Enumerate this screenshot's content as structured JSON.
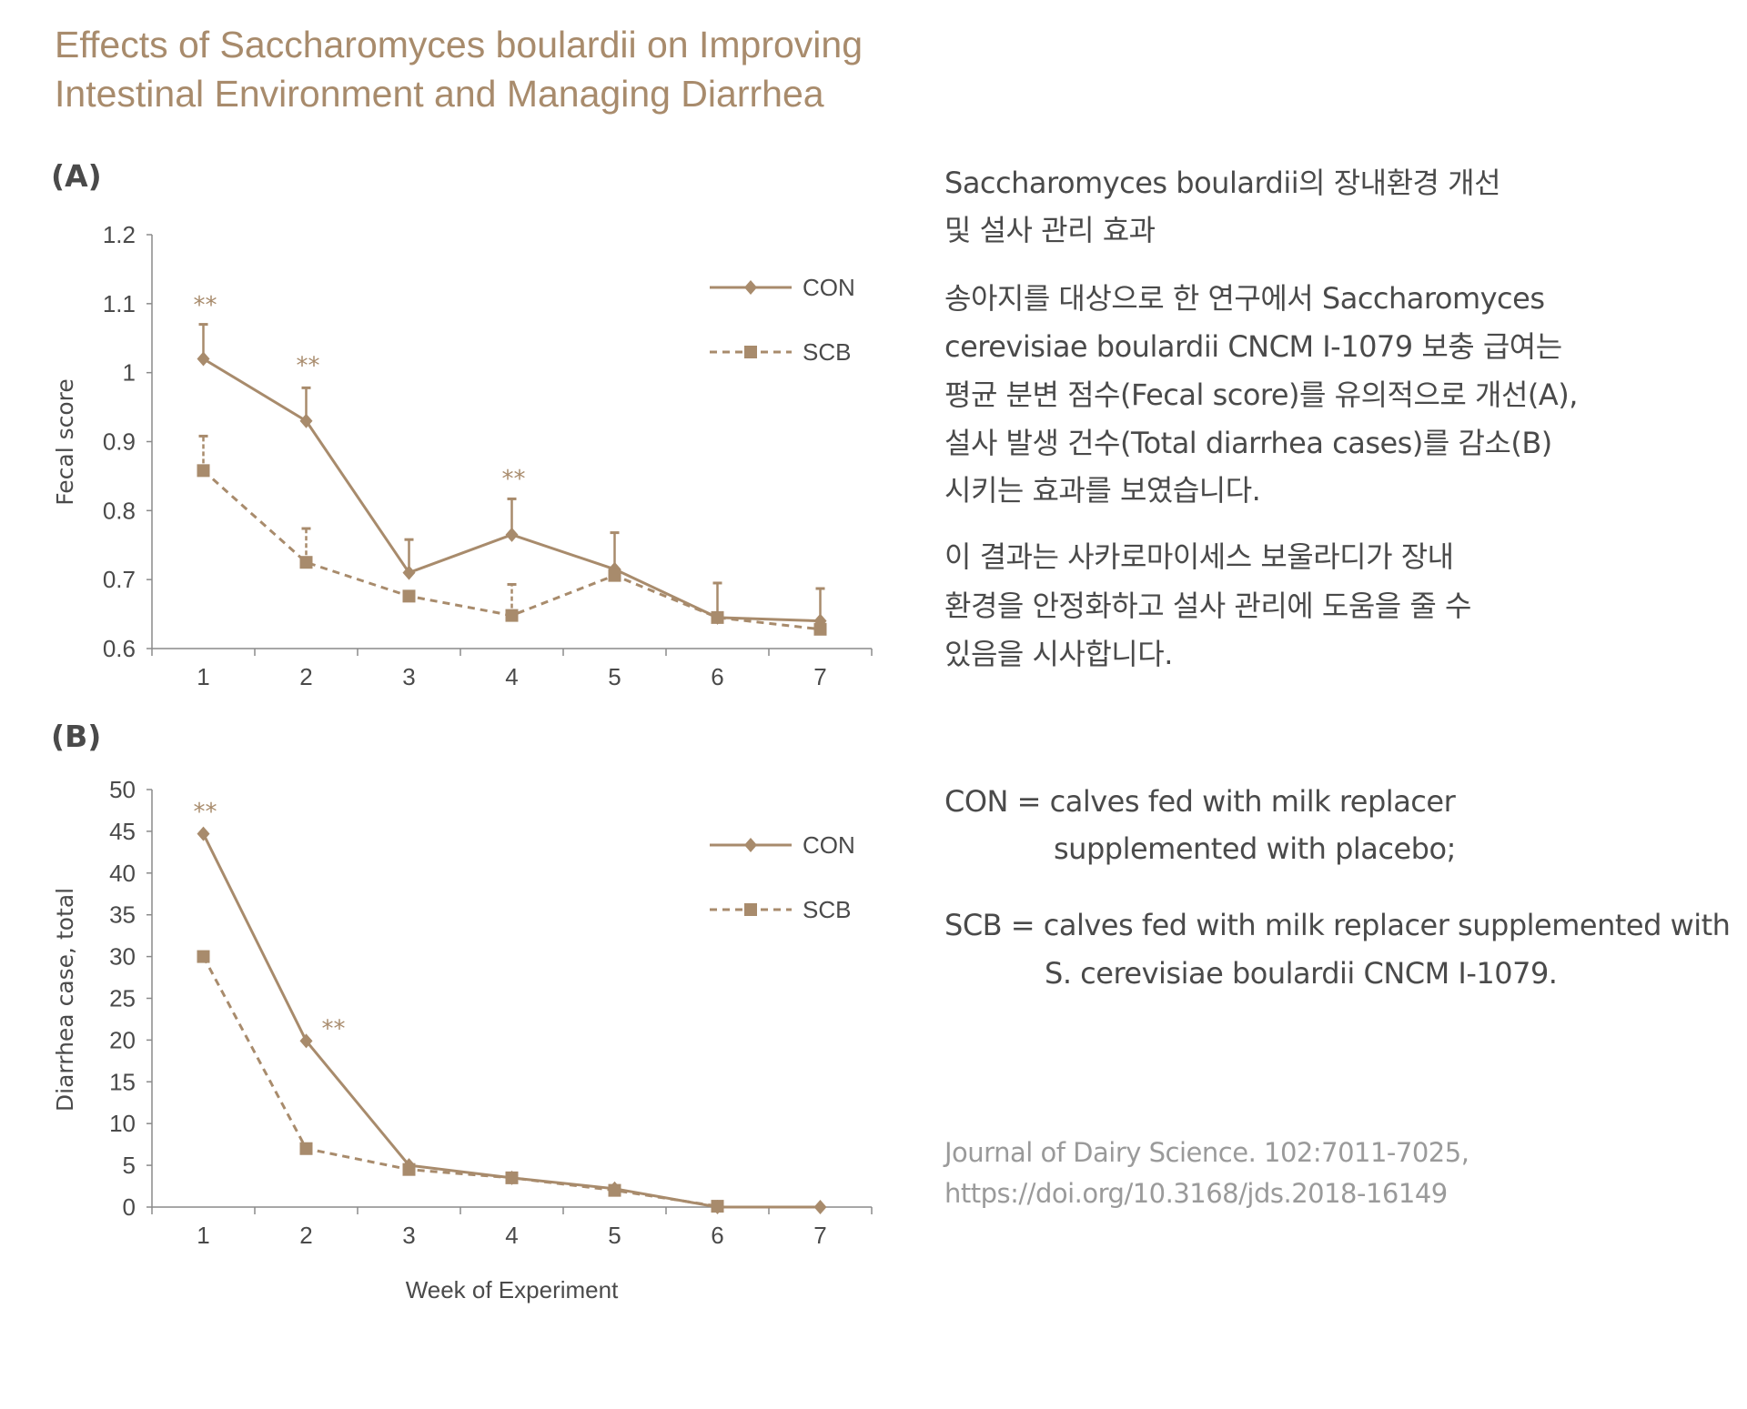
{
  "title_lines": [
    "Effects of Saccharomyces boulardii on Improving",
    "Intestinal Environment and Managing Diarrhea"
  ],
  "colors": {
    "accent": "#a88b6c",
    "text": "#4a4a4a",
    "citation": "#9a9a9a"
  },
  "chart_data": [
    {
      "panel_label": "(A)",
      "type": "line",
      "ylabel": "Fecal score",
      "xlabel": "",
      "categories": [
        "1",
        "2",
        "3",
        "4",
        "5",
        "6",
        "7"
      ],
      "ylim": [
        0.6,
        1.2
      ],
      "yticks": [
        "0.6",
        "0.7",
        "0.8",
        "0.9",
        "1",
        "1.1",
        "1.2"
      ],
      "grid": false,
      "legend_position": "top-right",
      "series": [
        {
          "name": "CON",
          "marker": "diamond",
          "line": "solid",
          "values": [
            1.02,
            0.93,
            0.71,
            0.765,
            0.715,
            0.645,
            0.64
          ],
          "error_upper": [
            1.07,
            0.978,
            0.758,
            0.817,
            0.768,
            0.695,
            0.687
          ]
        },
        {
          "name": "SCB",
          "marker": "square",
          "line": "dashed",
          "values": [
            0.858,
            0.725,
            0.676,
            0.648,
            0.706,
            0.645,
            0.628
          ],
          "error_upper": [
            0.908,
            0.774,
            null,
            0.693,
            null,
            null,
            null
          ]
        }
      ],
      "annotations": [
        {
          "text": "**",
          "week": 1,
          "value": 1.1
        },
        {
          "text": "**",
          "week": 2,
          "value": 1.012
        },
        {
          "text": "**",
          "week": 4,
          "value": 0.848
        }
      ]
    },
    {
      "panel_label": "(B)",
      "type": "line",
      "ylabel": "Diarrhea case, total",
      "xlabel": "Week of Experiment",
      "categories": [
        "1",
        "2",
        "3",
        "4",
        "5",
        "6",
        "7"
      ],
      "ylim": [
        0,
        50
      ],
      "yticks": [
        "0",
        "5",
        "10",
        "15",
        "20",
        "25",
        "30",
        "35",
        "40",
        "45",
        "50"
      ],
      "grid": false,
      "legend_position": "top-right",
      "series": [
        {
          "name": "CON",
          "marker": "diamond",
          "line": "solid",
          "values": [
            44.7,
            19.9,
            5,
            3.5,
            2.2,
            0,
            0
          ]
        },
        {
          "name": "SCB",
          "marker": "square",
          "line": "dashed",
          "values": [
            30,
            7,
            4.5,
            3.5,
            2,
            0.1,
            null
          ]
        }
      ],
      "annotations": [
        {
          "text": "**",
          "week": 1,
          "value": 47.5
        },
        {
          "text": "**",
          "week": 2,
          "value": 21.5
        }
      ]
    }
  ],
  "description": {
    "heading_lines": [
      "Saccharomyces boulardii의 장내환경 개선",
      "및 설사 관리 효과"
    ],
    "para1_lines": [
      "송아지를 대상으로 한 연구에서 Saccharomyces",
      "cerevisiae boulardii CNCM I-1079 보충 급여는",
      "평균 분변 점수(Fecal score)를 유의적으로 개선(A),",
      "설사 발생 건수(Total diarrhea cases)를 감소(B)",
      "시키는 효과를 보였습니다."
    ],
    "para2_lines": [
      "이 결과는 사카로마이세스 보울라디가 장내",
      "환경을 안정화하고 설사 관리에 도움을 줄 수",
      "있음을 시사합니다."
    ]
  },
  "definitions": {
    "con_lines": [
      "CON = calves fed with milk replacer",
      "supplemented with placebo;"
    ],
    "scb_lines": [
      "SCB = calves fed with milk replacer supplemented with",
      "S. cerevisiae boulardii CNCM I-1079."
    ]
  },
  "citation_lines": [
    "Journal of Dairy Science. 102:7011-7025,",
    "https://doi.org/10.3168/jds.2018-16149"
  ]
}
